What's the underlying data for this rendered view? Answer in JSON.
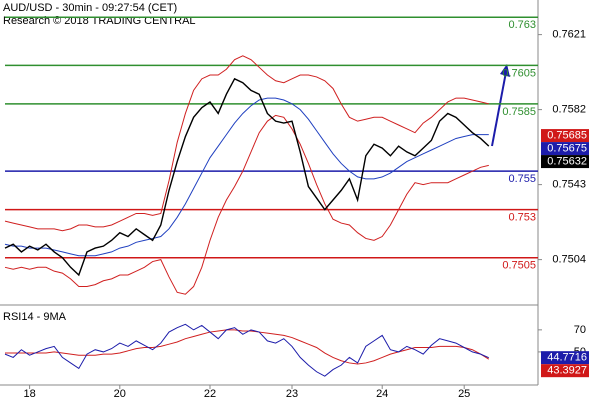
{
  "chart_data": [
    {
      "type": "line",
      "title": "AUD/USD - 30min - 09:27:54 (CET)",
      "subtitle": "Research © 2018 TRADING CENTRAL",
      "ylim": [
        0.7483,
        0.7639
      ],
      "yticks": [
        0.7621,
        0.7582,
        0.7543,
        0.7504
      ],
      "levels": [
        {
          "value": 0.763,
          "color": "#2f8f2f"
        },
        {
          "value": 0.7605,
          "color": "#2f8f2f"
        },
        {
          "value": 0.7585,
          "color": "#2f8f2f"
        },
        {
          "value": 0.755,
          "color": "#1c1caa"
        },
        {
          "value": 0.753,
          "color": "#d01818"
        },
        {
          "value": 0.7505,
          "color": "#d01818"
        }
      ],
      "markers": [
        {
          "value": 0.75685,
          "color": "#d01818"
        },
        {
          "value": 0.75675,
          "color": "#1c1caa"
        },
        {
          "value": 0.75632,
          "color": "#000000"
        }
      ],
      "series": [
        {
          "color": "#d02020",
          "values": [
            0.7524,
            0.7523,
            0.7522,
            0.7521,
            0.752,
            0.752,
            0.752,
            0.7519,
            0.752,
            0.7522,
            0.7522,
            0.7521,
            0.7521,
            0.7522,
            0.7524,
            0.7526,
            0.7528,
            0.7528,
            0.7527,
            0.7528,
            0.7545,
            0.7565,
            0.758,
            0.7592,
            0.7598,
            0.76,
            0.76,
            0.7603,
            0.7608,
            0.761,
            0.7608,
            0.7604,
            0.76,
            0.7597,
            0.7596,
            0.7598,
            0.76,
            0.76,
            0.7599,
            0.7597,
            0.7593,
            0.7585,
            0.7578,
            0.7576,
            0.7577,
            0.7578,
            0.7578,
            0.7576,
            0.7574,
            0.7572,
            0.757,
            0.7575,
            0.7578,
            0.7582,
            0.7586,
            0.7588,
            0.7588,
            0.7587,
            0.7586,
            0.7585
          ]
        },
        {
          "color": "#d02020",
          "values": [
            0.75,
            0.7499,
            0.75,
            0.7499,
            0.75,
            0.75,
            0.7498,
            0.7497,
            0.7494,
            0.749,
            0.749,
            0.7491,
            0.7493,
            0.7494,
            0.7496,
            0.7496,
            0.7498,
            0.75,
            0.7503,
            0.7504,
            0.7495,
            0.7487,
            0.7486,
            0.749,
            0.75,
            0.7514,
            0.7526,
            0.7535,
            0.7542,
            0.755,
            0.756,
            0.757,
            0.7576,
            0.7579,
            0.7578,
            0.7572,
            0.7564,
            0.7554,
            0.7543,
            0.7533,
            0.7525,
            0.7523,
            0.7522,
            0.7518,
            0.7515,
            0.7514,
            0.7516,
            0.7522,
            0.753,
            0.7538,
            0.7544,
            0.7543,
            0.7544,
            0.7544,
            0.7544,
            0.7546,
            0.7548,
            0.755,
            0.7552,
            0.7553
          ]
        },
        {
          "color": "#2040c0",
          "values": [
            0.7512,
            0.7511,
            0.7511,
            0.751,
            0.751,
            0.751,
            0.7509,
            0.7508,
            0.7507,
            0.7506,
            0.7506,
            0.7506,
            0.7507,
            0.7508,
            0.751,
            0.7511,
            0.7513,
            0.7514,
            0.7515,
            0.7516,
            0.752,
            0.7526,
            0.7533,
            0.7541,
            0.7549,
            0.7557,
            0.7563,
            0.7569,
            0.7575,
            0.758,
            0.7584,
            0.7587,
            0.7588,
            0.7588,
            0.7587,
            0.7585,
            0.7582,
            0.7577,
            0.7571,
            0.7565,
            0.7559,
            0.7554,
            0.755,
            0.7547,
            0.7546,
            0.7546,
            0.7547,
            0.7549,
            0.7552,
            0.7555,
            0.7557,
            0.7559,
            0.7561,
            0.7563,
            0.7565,
            0.7567,
            0.7568,
            0.7569,
            0.7569,
            0.7569
          ]
        },
        {
          "color": "#000000",
          "values": [
            0.751,
            0.7512,
            0.7508,
            0.7511,
            0.7509,
            0.7512,
            0.7508,
            0.7505,
            0.75,
            0.7496,
            0.7508,
            0.751,
            0.7511,
            0.7514,
            0.7518,
            0.7516,
            0.752,
            0.7517,
            0.7514,
            0.7522,
            0.754,
            0.7555,
            0.7568,
            0.7578,
            0.7583,
            0.7586,
            0.758,
            0.759,
            0.7598,
            0.7596,
            0.7592,
            0.759,
            0.758,
            0.7576,
            0.7575,
            0.7576,
            0.756,
            0.7542,
            0.7536,
            0.753,
            0.7535,
            0.754,
            0.7546,
            0.7535,
            0.7558,
            0.7564,
            0.7562,
            0.7558,
            0.7563,
            0.756,
            0.7558,
            0.7562,
            0.7566,
            0.7576,
            0.758,
            0.7578,
            0.7574,
            0.757,
            0.7567,
            0.7563
          ]
        }
      ]
    },
    {
      "type": "line",
      "title": "RSI14 - 9MA",
      "ylim": [
        20,
        88
      ],
      "yticks": [
        70,
        50
      ],
      "categories": [
        null,
        null,
        null,
        "18",
        null,
        null,
        null,
        null,
        null,
        null,
        null,
        null,
        null,
        null,
        "20",
        null,
        null,
        null,
        null,
        null,
        null,
        null,
        null,
        null,
        null,
        "22",
        null,
        null,
        null,
        null,
        null,
        null,
        null,
        null,
        null,
        "23",
        null,
        null,
        null,
        null,
        null,
        null,
        null,
        null,
        null,
        null,
        "24",
        null,
        null,
        null,
        null,
        null,
        null,
        null,
        null,
        null,
        "25",
        null,
        null,
        null
      ],
      "markers": [
        {
          "value": 44.7716,
          "color": "#1c1caa"
        },
        {
          "value": 43.3927,
          "color": "#d01818"
        }
      ],
      "series": [
        {
          "color": "#d02020",
          "values": [
            49,
            49,
            49,
            49,
            49,
            49,
            50,
            49,
            48,
            47,
            47,
            47,
            48,
            48,
            49,
            51,
            53,
            54,
            54,
            55,
            57,
            59,
            62,
            64,
            66,
            68,
            69,
            70,
            70,
            69,
            69,
            68,
            67,
            66,
            65,
            63,
            60,
            57,
            54,
            49,
            45,
            42,
            40,
            39,
            40,
            42,
            45,
            48,
            50,
            52,
            54,
            54,
            54,
            55,
            55,
            55,
            54,
            52,
            48,
            43.3927
          ]
        },
        {
          "color": "#1c1caa",
          "values": [
            48,
            45,
            52,
            47,
            50,
            53,
            55,
            45,
            40,
            35,
            48,
            52,
            50,
            53,
            58,
            55,
            60,
            56,
            52,
            58,
            68,
            72,
            75,
            70,
            74,
            68,
            62,
            70,
            72,
            66,
            70,
            68,
            60,
            58,
            62,
            55,
            45,
            38,
            32,
            28,
            34,
            38,
            45,
            40,
            55,
            60,
            65,
            52,
            50,
            55,
            52,
            48,
            56,
            62,
            60,
            58,
            54,
            50,
            48,
            44.7716
          ]
        }
      ]
    }
  ]
}
